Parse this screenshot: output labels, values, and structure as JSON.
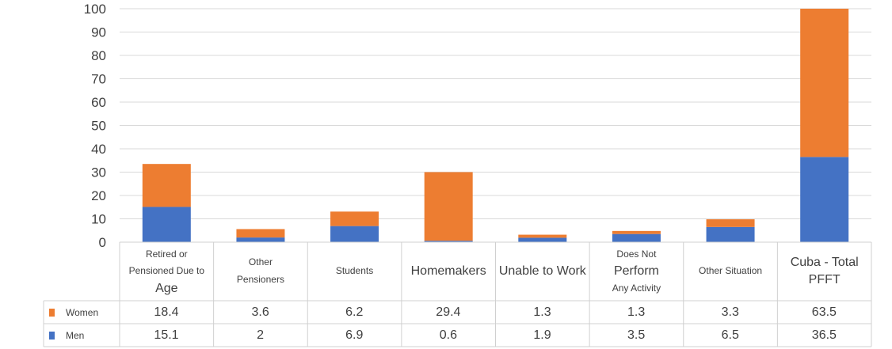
{
  "chart_data": {
    "type": "bar",
    "stacked": true,
    "categories": [
      "Retired or Pensioned Due to Age",
      "Other Pensioners",
      "Students",
      "Homemakers",
      "Unable to Work",
      "Does Not Perform Any Activity",
      "Other Situation",
      "Cuba - Total PFFT"
    ],
    "category_lines": [
      [
        "Retired or",
        "Pensioned Due to",
        "Age"
      ],
      [
        "Other",
        "Pensioners"
      ],
      [
        "Students"
      ],
      [
        "Homemakers"
      ],
      [
        "Unable to Work"
      ],
      [
        "Does Not",
        "Perform",
        "Any Activity"
      ],
      [
        "Other Situation"
      ],
      [
        "Cuba - Total",
        "PFFT"
      ]
    ],
    "series": [
      {
        "name": "Men",
        "color": "#4472C4",
        "values": [
          15.1,
          2,
          6.9,
          0.6,
          1.9,
          3.5,
          6.5,
          36.5
        ]
      },
      {
        "name": "Women",
        "color": "#ED7D31",
        "values": [
          18.4,
          3.6,
          6.2,
          29.4,
          1.3,
          1.3,
          3.3,
          63.5
        ]
      }
    ],
    "table_rows": [
      {
        "name": "Women",
        "color": "#ED7D31",
        "values": [
          "18.4",
          "3.6",
          "6.2",
          "29.4",
          "1.3",
          "1.3",
          "3.3",
          "63.5"
        ]
      },
      {
        "name": "Men",
        "color": "#4472C4",
        "values": [
          "15.1",
          "2",
          "6.9",
          "0.6",
          "1.9",
          "3.5",
          "6.5",
          "36.5"
        ]
      }
    ],
    "yticks": [
      "0",
      "10",
      "20",
      "30",
      "40",
      "50",
      "60",
      "70",
      "80",
      "90",
      "100"
    ],
    "ylim": [
      0,
      100
    ],
    "grid": true,
    "legend": "data-table"
  }
}
